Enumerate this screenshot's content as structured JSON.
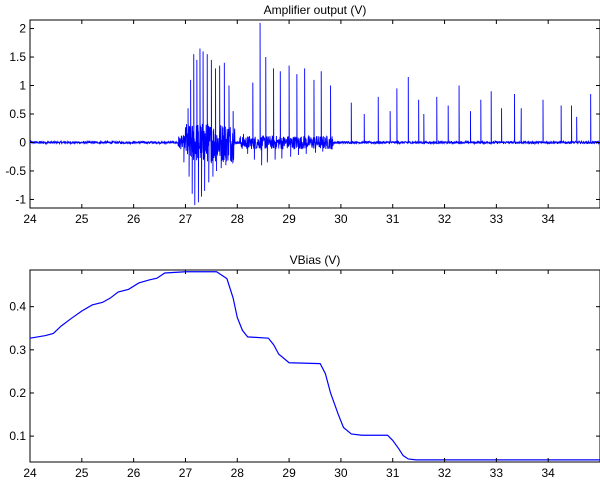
{
  "chart_data": [
    {
      "type": "line",
      "title": "Amplifier output (V)",
      "xlabel": "",
      "ylabel": "",
      "xlim": [
        24,
        35
      ],
      "ylim": [
        -1.15,
        2.15
      ],
      "xticks": [
        24,
        25,
        26,
        27,
        28,
        29,
        30,
        31,
        32,
        33,
        34
      ],
      "yticks": [
        -1,
        -0.5,
        0,
        0.5,
        1,
        1.5,
        2
      ],
      "ytick_labels": [
        "-1",
        "-0.5",
        "0",
        "0.5",
        "1",
        "1.5",
        "2"
      ],
      "grid": false,
      "legend": "none",
      "series": [
        {
          "color": "#0000ff",
          "baseline": 0,
          "noise_amplitude": 0.02,
          "bursts": [
            {
              "x_start": 26.85,
              "x_end": 27.0,
              "amplitude": 0.12
            },
            {
              "x_start": 27.0,
              "x_end": 27.95,
              "amplitude": 0.35
            },
            {
              "x_start": 28.05,
              "x_end": 29.85,
              "amplitude": 0.12
            }
          ],
          "spikes": [
            {
              "x": 26.92,
              "y": 0.12
            },
            {
              "x": 26.97,
              "y": -0.35
            },
            {
              "x": 27.05,
              "y": 0.6
            },
            {
              "x": 27.07,
              "y": -0.6
            },
            {
              "x": 27.1,
              "y": 1.1
            },
            {
              "x": 27.13,
              "y": -0.9
            },
            {
              "x": 27.16,
              "y": 1.55
            },
            {
              "x": 27.18,
              "y": -1.1
            },
            {
              "x": 27.22,
              "y": 1.45
            },
            {
              "x": 27.25,
              "y": -1.05
            },
            {
              "x": 27.28,
              "y": 1.65
            },
            {
              "x": 27.31,
              "y": -0.95
            },
            {
              "x": 27.34,
              "y": 1.6
            },
            {
              "x": 27.37,
              "y": -0.85
            },
            {
              "x": 27.42,
              "y": 1.55
            },
            {
              "x": 27.45,
              "y": -0.7
            },
            {
              "x": 27.5,
              "y": 1.45
            },
            {
              "x": 27.53,
              "y": -0.6
            },
            {
              "x": 27.58,
              "y": 1.3
            },
            {
              "x": 27.6,
              "y": -0.5
            },
            {
              "x": 27.66,
              "y": 1.35
            },
            {
              "x": 27.69,
              "y": -0.45
            },
            {
              "x": 27.75,
              "y": 1.4
            },
            {
              "x": 27.78,
              "y": -0.4
            },
            {
              "x": 27.84,
              "y": 1.0
            },
            {
              "x": 27.87,
              "y": -0.3
            },
            {
              "x": 27.92,
              "y": 0.55
            },
            {
              "x": 28.12,
              "y": 0.15
            },
            {
              "x": 28.2,
              "y": -0.2
            },
            {
              "x": 28.3,
              "y": 1.05
            },
            {
              "x": 28.33,
              "y": -0.3
            },
            {
              "x": 28.44,
              "y": 2.1
            },
            {
              "x": 28.47,
              "y": -0.4
            },
            {
              "x": 28.55,
              "y": 1.5
            },
            {
              "x": 28.58,
              "y": -0.35
            },
            {
              "x": 28.7,
              "y": 1.3
            },
            {
              "x": 28.73,
              "y": -0.3
            },
            {
              "x": 28.83,
              "y": 1.25
            },
            {
              "x": 28.86,
              "y": -0.28
            },
            {
              "x": 29.0,
              "y": 1.35
            },
            {
              "x": 29.03,
              "y": -0.25
            },
            {
              "x": 29.15,
              "y": 1.2
            },
            {
              "x": 29.18,
              "y": -0.22
            },
            {
              "x": 29.3,
              "y": 1.3
            },
            {
              "x": 29.33,
              "y": -0.2
            },
            {
              "x": 29.48,
              "y": 1.1
            },
            {
              "x": 29.51,
              "y": -0.18
            },
            {
              "x": 29.62,
              "y": 1.25
            },
            {
              "x": 29.65,
              "y": -0.16
            },
            {
              "x": 29.8,
              "y": 1.0
            },
            {
              "x": 29.83,
              "y": -0.12
            },
            {
              "x": 30.2,
              "y": 0.7
            },
            {
              "x": 30.45,
              "y": 0.5
            },
            {
              "x": 30.72,
              "y": 0.8
            },
            {
              "x": 30.95,
              "y": 0.55
            },
            {
              "x": 31.08,
              "y": 0.95
            },
            {
              "x": 31.3,
              "y": 1.15
            },
            {
              "x": 31.5,
              "y": 0.75
            },
            {
              "x": 31.6,
              "y": 0.5
            },
            {
              "x": 31.85,
              "y": 0.8
            },
            {
              "x": 32.07,
              "y": 0.65
            },
            {
              "x": 32.28,
              "y": 1.0
            },
            {
              "x": 32.5,
              "y": 0.55
            },
            {
              "x": 32.7,
              "y": 0.75
            },
            {
              "x": 32.9,
              "y": 0.9
            },
            {
              "x": 33.1,
              "y": 0.6
            },
            {
              "x": 33.35,
              "y": 0.85
            },
            {
              "x": 33.48,
              "y": 0.6
            },
            {
              "x": 33.9,
              "y": 0.75
            },
            {
              "x": 34.25,
              "y": 0.65
            },
            {
              "x": 34.45,
              "y": 0.65
            },
            {
              "x": 34.55,
              "y": 0.45
            },
            {
              "x": 34.82,
              "y": 0.85
            }
          ]
        }
      ]
    },
    {
      "type": "line",
      "title": "VBias (V)",
      "xlabel": "",
      "ylabel": "",
      "xlim": [
        24,
        35
      ],
      "ylim": [
        0.04,
        0.485
      ],
      "xticks": [
        24,
        25,
        26,
        27,
        28,
        29,
        30,
        31,
        32,
        33,
        34
      ],
      "yticks": [
        0.1,
        0.2,
        0.3,
        0.4
      ],
      "ytick_labels": [
        "0.1",
        "0.2",
        "0.3",
        "0.4"
      ],
      "grid": false,
      "legend": "none",
      "series": [
        {
          "color": "#0000ff",
          "x": [
            24.0,
            24.3,
            24.45,
            24.6,
            24.8,
            25.0,
            25.2,
            25.4,
            25.55,
            25.7,
            25.9,
            26.1,
            26.3,
            26.45,
            26.6,
            27.0,
            27.3,
            27.6,
            27.8,
            27.92,
            28.0,
            28.1,
            28.2,
            28.6,
            28.7,
            28.8,
            29.0,
            29.6,
            29.7,
            29.8,
            29.95,
            30.05,
            30.2,
            30.4,
            30.9,
            31.0,
            31.12,
            31.2,
            31.3,
            31.45,
            32.0,
            33.0,
            34.0,
            35.0
          ],
          "y": [
            0.327,
            0.333,
            0.338,
            0.355,
            0.373,
            0.39,
            0.404,
            0.41,
            0.42,
            0.434,
            0.44,
            0.455,
            0.462,
            0.466,
            0.478,
            0.481,
            0.481,
            0.481,
            0.465,
            0.42,
            0.375,
            0.345,
            0.33,
            0.327,
            0.312,
            0.29,
            0.27,
            0.268,
            0.245,
            0.2,
            0.15,
            0.12,
            0.105,
            0.102,
            0.102,
            0.09,
            0.07,
            0.055,
            0.047,
            0.045,
            0.045,
            0.045,
            0.045,
            0.045
          ]
        }
      ]
    }
  ]
}
